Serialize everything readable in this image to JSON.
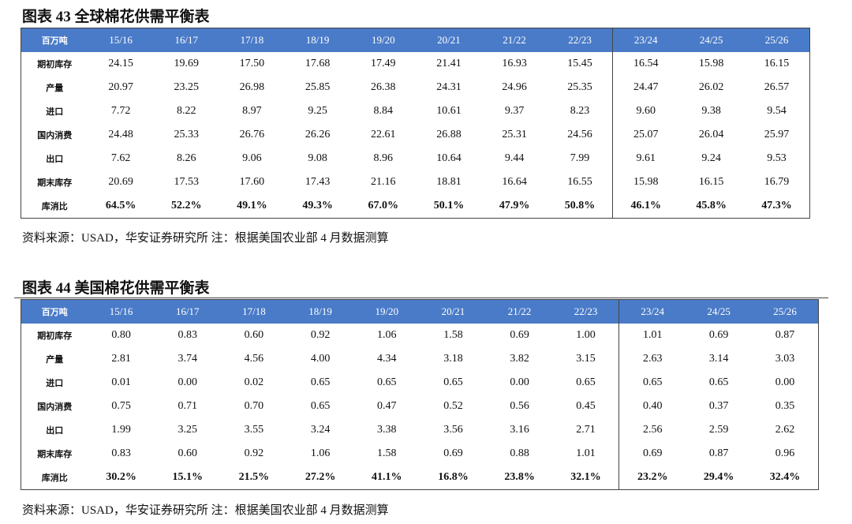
{
  "sections": [
    {
      "title": "图表 43 全球棉花供需平衡表",
      "header": [
        "百万吨",
        "15/16",
        "16/17",
        "17/18",
        "18/19",
        "19/20",
        "20/21",
        "21/22",
        "22/23",
        "23/24",
        "24/25",
        "25/26"
      ],
      "rows": [
        {
          "label": "期初库存",
          "values": [
            "24.15",
            "19.69",
            "17.50",
            "17.68",
            "17.49",
            "21.41",
            "16.93",
            "15.45",
            "16.54",
            "15.98",
            "16.15"
          ]
        },
        {
          "label": "产量",
          "values": [
            "20.97",
            "23.25",
            "26.98",
            "25.85",
            "26.38",
            "24.31",
            "24.96",
            "25.35",
            "24.47",
            "26.02",
            "26.57"
          ]
        },
        {
          "label": "进口",
          "values": [
            "7.72",
            "8.22",
            "8.97",
            "9.25",
            "8.84",
            "10.61",
            "9.37",
            "8.23",
            "9.60",
            "9.38",
            "9.54"
          ]
        },
        {
          "label": "国内消费",
          "values": [
            "24.48",
            "25.33",
            "26.76",
            "26.26",
            "22.61",
            "26.88",
            "25.31",
            "24.56",
            "25.07",
            "26.04",
            "25.97"
          ]
        },
        {
          "label": "出口",
          "values": [
            "7.62",
            "8.26",
            "9.06",
            "9.08",
            "8.96",
            "10.64",
            "9.44",
            "7.99",
            "9.61",
            "9.24",
            "9.53"
          ]
        },
        {
          "label": "期末库存",
          "values": [
            "20.69",
            "17.53",
            "17.60",
            "17.43",
            "21.16",
            "18.81",
            "16.64",
            "16.55",
            "15.98",
            "16.15",
            "16.79"
          ]
        },
        {
          "label": "库消比",
          "values": [
            "64.5%",
            "52.2%",
            "49.1%",
            "49.3%",
            "67.0%",
            "50.1%",
            "47.9%",
            "50.8%",
            "46.1%",
            "45.8%",
            "47.3%"
          ]
        }
      ],
      "source": "资料来源：USAD，华安证券研究所 注：根据美国农业部 4 月数据测算"
    },
    {
      "title": "图表 44 美国棉花供需平衡表",
      "header": [
        "百万吨",
        "15/16",
        "16/17",
        "17/18",
        "18/19",
        "19/20",
        "20/21",
        "21/22",
        "22/23",
        "23/24",
        "24/25",
        "25/26"
      ],
      "rows": [
        {
          "label": "期初库存",
          "values": [
            "0.80",
            "0.83",
            "0.60",
            "0.92",
            "1.06",
            "1.58",
            "0.69",
            "1.00",
            "1.01",
            "0.69",
            "0.87"
          ]
        },
        {
          "label": "产量",
          "values": [
            "2.81",
            "3.74",
            "4.56",
            "4.00",
            "4.34",
            "3.18",
            "3.82",
            "3.15",
            "2.63",
            "3.14",
            "3.03"
          ]
        },
        {
          "label": "进口",
          "values": [
            "0.01",
            "0.00",
            "0.02",
            "0.65",
            "0.65",
            "0.65",
            "0.00",
            "0.65",
            "0.65",
            "0.65",
            "0.00"
          ]
        },
        {
          "label": "国内消费",
          "values": [
            "0.75",
            "0.71",
            "0.70",
            "0.65",
            "0.47",
            "0.52",
            "0.56",
            "0.45",
            "0.40",
            "0.37",
            "0.35"
          ]
        },
        {
          "label": "出口",
          "values": [
            "1.99",
            "3.25",
            "3.55",
            "3.24",
            "3.38",
            "3.56",
            "3.16",
            "2.71",
            "2.56",
            "2.59",
            "2.62"
          ]
        },
        {
          "label": "期末库存",
          "values": [
            "0.83",
            "0.60",
            "0.92",
            "1.06",
            "1.58",
            "0.69",
            "0.88",
            "1.01",
            "0.69",
            "0.87",
            "0.96"
          ]
        },
        {
          "label": "库消比",
          "values": [
            "30.2%",
            "15.1%",
            "21.5%",
            "27.2%",
            "41.1%",
            "16.8%",
            "23.8%",
            "32.1%",
            "23.2%",
            "29.4%",
            "32.4%"
          ]
        }
      ],
      "source": "资料来源：USAD，华安证券研究所 注：根据美国农业部 4 月数据测算"
    }
  ]
}
